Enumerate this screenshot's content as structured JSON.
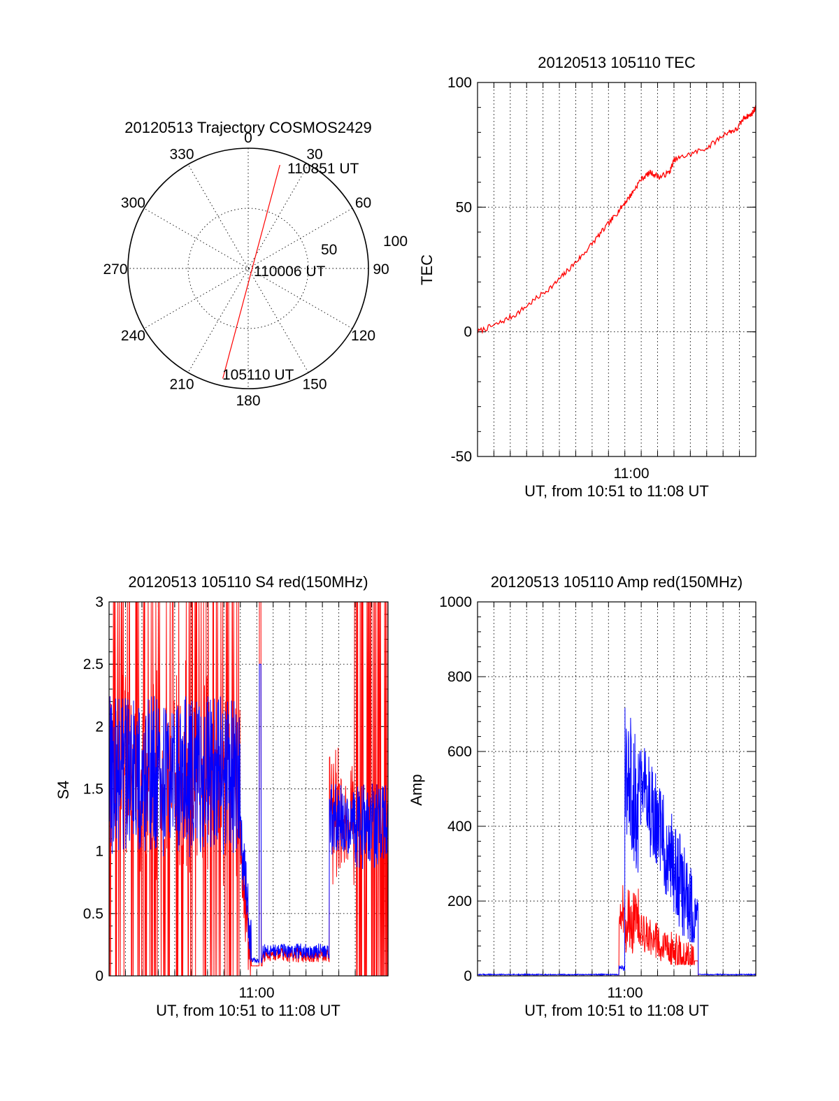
{
  "colors": {
    "red": "#ff0000",
    "blue": "#0000ff",
    "axis": "#000000"
  },
  "chart_data": [
    {
      "id": "polar",
      "type": "polar",
      "title": "20120513 Trajectory COSMOS2429",
      "angle_labels": [
        "0",
        "30",
        "60",
        "90",
        "120",
        "150",
        "180",
        "210",
        "240",
        "270",
        "300",
        "330"
      ],
      "radial_labels": [
        "50",
        "100"
      ],
      "rmax": 100,
      "trajectory": {
        "start": {
          "azimuth": 193,
          "radius": 94,
          "label": "105110 UT"
        },
        "mid": {
          "label": "110006 UT"
        },
        "end": {
          "azimuth": 17,
          "radius": 90,
          "label": "110851 UT"
        }
      }
    },
    {
      "id": "tec",
      "type": "line",
      "title": "20120513 105110 TEC",
      "ylabel": "TEC",
      "xlabel": "UT, from 10:51 to 11:08 UT",
      "ylim": [
        -50,
        100
      ],
      "yticks": [
        "-50",
        "0",
        "50",
        "100"
      ],
      "xtick_label": "11:00",
      "x_range_min": [
        10.85,
        11.14
      ],
      "x_tick_min": 11.0,
      "series": [
        {
          "color": "red",
          "points": [
            [
              10.85,
              0
            ],
            [
              10.87,
              3
            ],
            [
              10.89,
              7
            ],
            [
              10.91,
              13
            ],
            [
              10.93,
              19
            ],
            [
              10.945,
              25
            ],
            [
              10.96,
              31
            ],
            [
              10.975,
              38
            ],
            [
              10.99,
              45
            ],
            [
              11.0,
              50
            ],
            [
              11.01,
              55
            ],
            [
              11.02,
              61
            ],
            [
              11.03,
              64
            ],
            [
              11.04,
              62
            ],
            [
              11.05,
              64
            ],
            [
              11.055,
              69
            ],
            [
              11.07,
              71
            ],
            [
              11.09,
              74
            ],
            [
              11.11,
              80
            ],
            [
              11.12,
              81
            ],
            [
              11.128,
              86
            ],
            [
              11.135,
              87
            ],
            [
              11.14,
              90
            ]
          ]
        }
      ]
    },
    {
      "id": "s4",
      "type": "line",
      "title": "20120513 105110 S4 red(150MHz)",
      "ylabel": "S4",
      "xlabel": "UT, from 10:51 to 11:08 UT",
      "ylim": [
        0,
        3
      ],
      "yticks": [
        "0",
        "0.5",
        "1",
        "1.5",
        "2",
        "2.5",
        "3"
      ],
      "xtick_label": "11:00",
      "x_range_min": [
        10.85,
        11.14
      ],
      "x_tick_min": 11.0
    },
    {
      "id": "amp",
      "type": "line",
      "title": "20120513 105110 Amp red(150MHz)",
      "ylabel": "Amp",
      "xlabel": "UT, from 10:51 to 11:08 UT",
      "ylim": [
        0,
        1000
      ],
      "yticks": [
        "0",
        "200",
        "400",
        "600",
        "800",
        "1000"
      ],
      "xtick_label": "11:00",
      "x_range_min": [
        10.85,
        11.14
      ],
      "x_tick_min": 11.0
    }
  ]
}
